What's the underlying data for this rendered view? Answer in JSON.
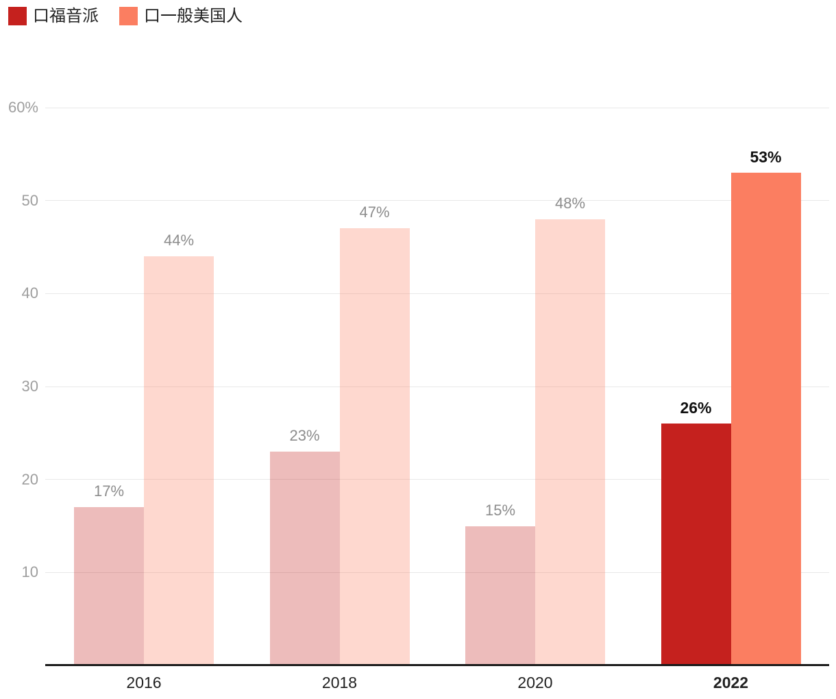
{
  "legend": {
    "items": [
      {
        "label": "口福音派",
        "color": "#c5211e"
      },
      {
        "label": "口一般美国人",
        "color": "#fb7e61"
      }
    ]
  },
  "chart_data": {
    "type": "bar",
    "categories": [
      "2016",
      "2018",
      "2020",
      "2022"
    ],
    "series": [
      {
        "name": "口福音派",
        "color": "#c5211e",
        "values": [
          17,
          23,
          15,
          26
        ],
        "labels": [
          "17%",
          "23%",
          "15%",
          "26%"
        ]
      },
      {
        "name": "口一般美国人",
        "color": "#fb7e61",
        "values": [
          44,
          47,
          48,
          53
        ],
        "labels": [
          "44%",
          "47%",
          "48%",
          "53%"
        ]
      }
    ],
    "highlight_category": "2022",
    "faded_opacity": 0.3,
    "ylim": [
      0,
      60
    ],
    "y_ticks": [
      {
        "value": 10,
        "label": "10"
      },
      {
        "value": 20,
        "label": "20"
      },
      {
        "value": 30,
        "label": "30"
      },
      {
        "value": 40,
        "label": "40"
      },
      {
        "value": 50,
        "label": "50"
      },
      {
        "value": 60,
        "label": "60%"
      }
    ],
    "grid": "horizontal",
    "legend_position": "top-left",
    "colors": {
      "grid": "#e8e8e8",
      "axis": "#1a1a1a",
      "tick_label": "#9e9e9e",
      "data_label_faded": "#8c8c8c",
      "data_label_highlight": "#111111",
      "x_label": "#212121"
    }
  }
}
